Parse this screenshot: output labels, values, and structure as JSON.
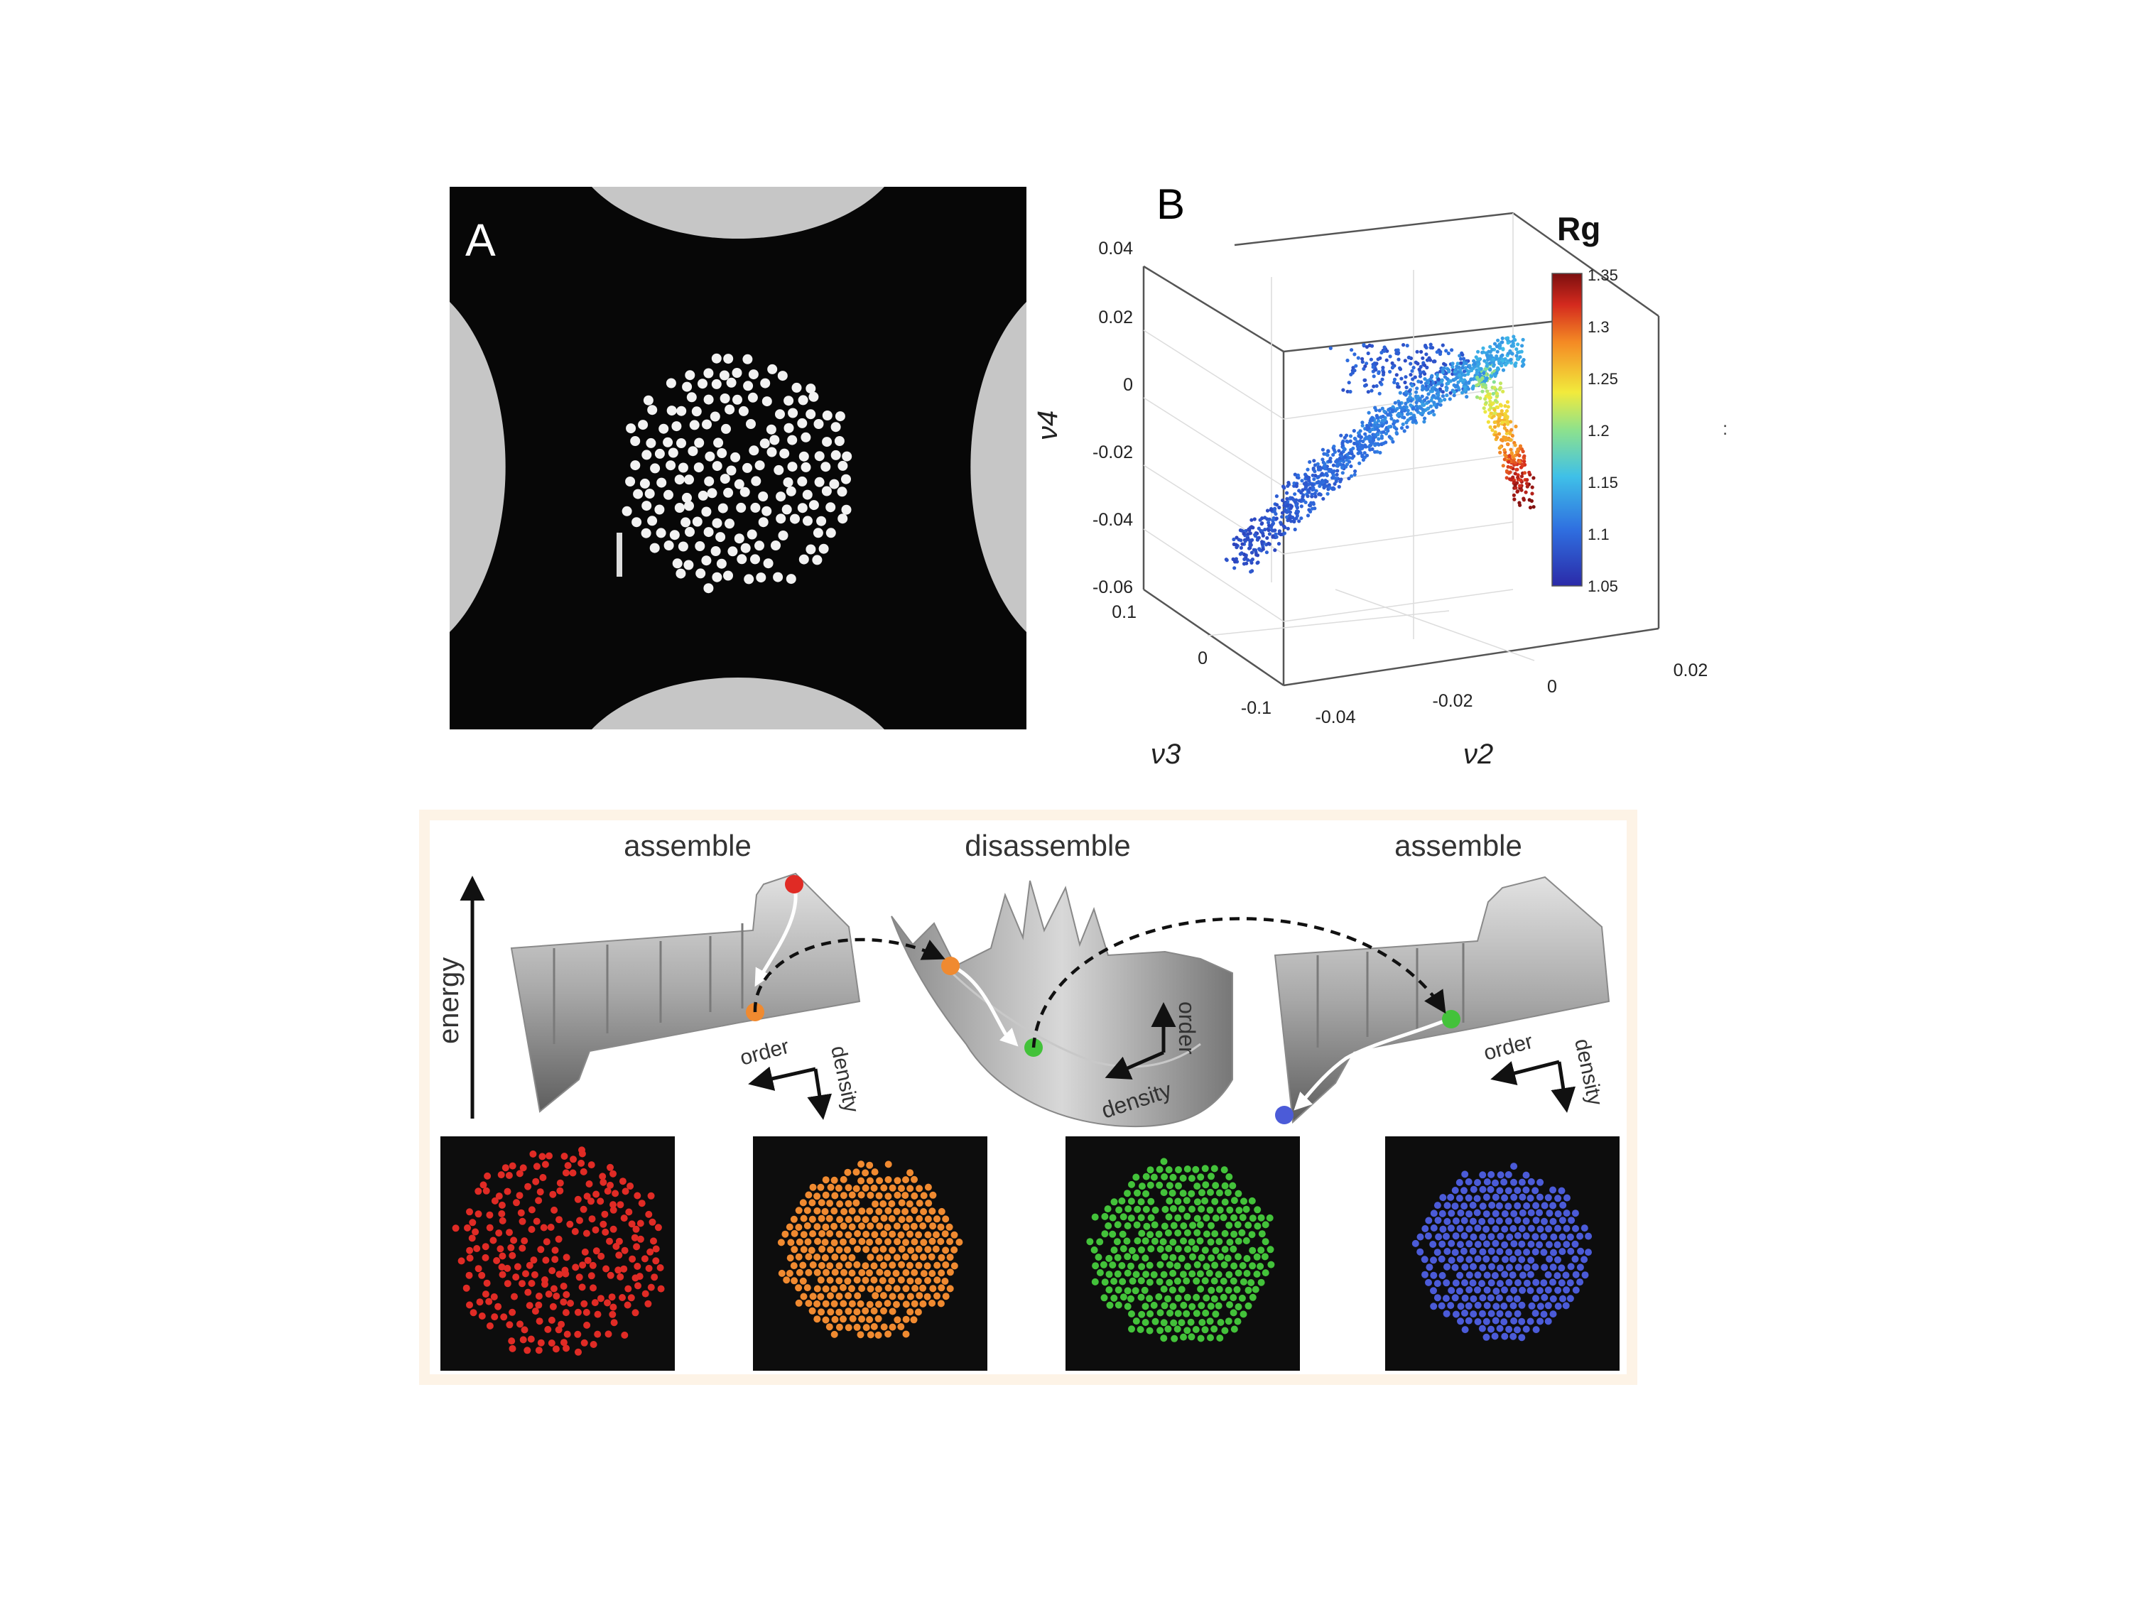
{
  "panel_a": {
    "label": "A"
  },
  "panel_b": {
    "label": "B",
    "colorbar_title": "Rg",
    "colorbar_ticks": [
      "1.35",
      "1.3",
      "1.25",
      "1.2",
      "1.15",
      "1.1",
      "1.05"
    ],
    "v4_ticks": [
      "0.04",
      "0.02",
      "0",
      "-0.02",
      "-0.04",
      "-0.06"
    ],
    "v3_ticks": [
      "0.1",
      "0",
      "-0.1"
    ],
    "v2_ticks": [
      "-0.04",
      "-0.02",
      "0",
      "0.02"
    ],
    "axis_v4": "ν4",
    "axis_v3": "ν3",
    "axis_v2": "ν2",
    "stray_mark": ":"
  },
  "panel_c": {
    "title_left": "assemble",
    "title_mid": "disassemble",
    "title_right": "assemble",
    "energy_label": "energy",
    "order_label": "order",
    "density_label": "density",
    "state_colors": {
      "red": "#e02b25",
      "orange": "#f08a30",
      "green": "#43c23a",
      "blue": "#4b5bd8"
    }
  }
}
